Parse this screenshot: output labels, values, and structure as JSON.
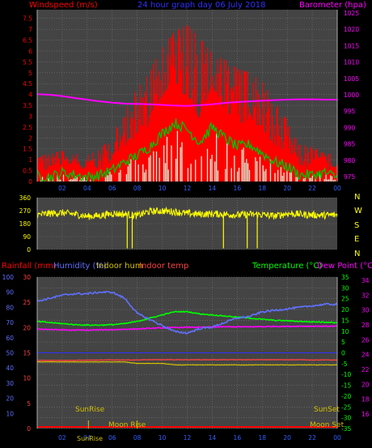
{
  "header": {
    "left": "Windspeed (m/s)",
    "center": "24 hour graph day   06 July 2018",
    "right": "Barometer (hpa)"
  },
  "colors": {
    "wind": "#ff0000",
    "gust": "#ff0000",
    "wind_avg": "#00c000",
    "calm": "#d8f0d8",
    "baro": "#ff00ff",
    "direction": "#ffff00",
    "humidity": "#6070ff",
    "temp": "#00ff00",
    "dew": "#ff00ff",
    "indoor_hum": "#d4c000",
    "indoor_temp": "#ff4040",
    "rain": "#ff0000",
    "sun": "#d4c000",
    "moon": "#d4c000"
  },
  "compass": [
    "N",
    "W",
    "S",
    "E",
    "N"
  ],
  "panel3_header": {
    "rain": "Rainfall (mm)",
    "humidity": "Humidity (%)",
    "indoor_hum": "Indoor hum",
    "indoor_temp": "Indoor temp",
    "temp": "Temperature (°C)",
    "dew": "Dew Point (°C)"
  },
  "markers": {
    "sunrise": "SunRise",
    "sunset": "SunSet",
    "moonrise": "Moon Rise",
    "moonset": "Moon Set",
    "sunrise_axis": "SunRise"
  },
  "chart_data": [
    {
      "type": "bar",
      "name": "wind",
      "x_labels": [
        "02",
        "04",
        "06",
        "08",
        "10",
        "12",
        "14",
        "16",
        "18",
        "20",
        "22",
        "00"
      ],
      "y_ticks": [
        "0",
        "0.5",
        "1",
        "1.5",
        "2",
        "2.5",
        "3",
        "3.5",
        "4",
        "4.5",
        "5",
        "5.5",
        "6",
        "6.5",
        "7",
        "7.5"
      ],
      "ylim": [
        0,
        7.9
      ],
      "y2_ticks": [
        "975",
        "980",
        "985",
        "990",
        "995",
        "1000",
        "1005",
        "1010",
        "1015",
        "1020",
        "1025"
      ],
      "y2lim": [
        973.5,
        1026
      ],
      "gust_envelope": {
        "hours": [
          0,
          1,
          2,
          3,
          4,
          5,
          6,
          7,
          8,
          9,
          10,
          11,
          12,
          13,
          14,
          15,
          16,
          17,
          18,
          19,
          20,
          21,
          22,
          23,
          24
        ],
        "values": [
          1.5,
          1.3,
          1.4,
          1.3,
          1.2,
          1.5,
          2.0,
          3.2,
          4.3,
          5.0,
          6.3,
          6.9,
          7.2,
          6.6,
          5.9,
          5.6,
          5.2,
          5.0,
          4.6,
          3.7,
          2.8,
          1.7,
          1.6,
          1.3,
          1.2
        ]
      },
      "avg_wind": {
        "hours": [
          0,
          1,
          2,
          3,
          4,
          5,
          6,
          7,
          8,
          9,
          10,
          11,
          12,
          13,
          14,
          15,
          16,
          17,
          18,
          19,
          20,
          21,
          22,
          23,
          24
        ],
        "values": [
          0.3,
          0.2,
          0.4,
          0.3,
          0.2,
          0.3,
          0.5,
          0.9,
          1.2,
          1.6,
          2.2,
          2.7,
          2.4,
          1.8,
          2.5,
          2.0,
          1.6,
          1.7,
          1.3,
          0.9,
          0.7,
          0.3,
          0.3,
          0.4,
          0.2
        ]
      },
      "barometer": {
        "hours": [
          0,
          1,
          2,
          3,
          4,
          5,
          6,
          7,
          8,
          9,
          10,
          11,
          12,
          13,
          14,
          15,
          16,
          17,
          18,
          19,
          20,
          21,
          22,
          23,
          24
        ],
        "values": [
          1000.2,
          1000.0,
          999.6,
          999.0,
          998.5,
          998.0,
          997.6,
          997.3,
          997.2,
          997.1,
          996.9,
          996.7,
          996.6,
          996.8,
          997.1,
          997.5,
          997.8,
          998.0,
          998.2,
          998.4,
          998.5,
          998.6,
          998.6,
          998.5,
          998.5
        ]
      }
    },
    {
      "type": "line",
      "name": "wind direction",
      "y_ticks": [
        "0",
        "90",
        "180",
        "270",
        "360"
      ],
      "ylim": [
        0,
        360
      ],
      "series": [
        {
          "hours": [
            0,
            1,
            2,
            3,
            4,
            5,
            6,
            7,
            8,
            9,
            10,
            11,
            12,
            13,
            14,
            15,
            16,
            17,
            18,
            19,
            20,
            21,
            22,
            23,
            24
          ],
          "values": [
            240,
            250,
            255,
            245,
            230,
            235,
            250,
            245,
            235,
            265,
            268,
            262,
            250,
            245,
            248,
            245,
            240,
            245,
            242,
            232,
            250,
            245,
            240,
            238,
            240
          ]
        }
      ],
      "dips_hours": [
        7.2,
        7.6,
        14.9,
        16.8,
        17.6
      ]
    },
    {
      "type": "line",
      "name": "climate",
      "x_labels": [
        "02",
        "04",
        "06",
        "08",
        "10",
        "12",
        "14",
        "16",
        "18",
        "20",
        "22",
        "00"
      ],
      "rain_ticks": [
        "0",
        "5",
        "10",
        "15",
        "20",
        "25",
        "30"
      ],
      "hum_ticks": [
        "10",
        "20",
        "30",
        "40",
        "50",
        "60",
        "70",
        "80",
        "90",
        "100"
      ],
      "hum_lim": [
        0,
        100
      ],
      "temp_ticks": [
        "-35",
        "-30",
        "-25",
        "-20",
        "-15",
        "-10",
        "-5",
        "0",
        "5",
        "10",
        "15",
        "20",
        "25",
        "30",
        "35"
      ],
      "temp_lim": [
        -35,
        35
      ],
      "dew_ticks": [
        "16",
        "18",
        "20",
        "22",
        "24",
        "26",
        "28",
        "30",
        "32",
        "34"
      ],
      "humidity": {
        "hours": [
          0,
          1,
          2,
          3,
          4,
          5,
          6,
          7,
          8,
          9,
          10,
          11,
          12,
          13,
          14,
          15,
          16,
          17,
          18,
          19,
          20,
          21,
          22,
          23,
          24
        ],
        "values": [
          84,
          86,
          88,
          89,
          89,
          90,
          90,
          86,
          76,
          72,
          68,
          64,
          63,
          66,
          67,
          70,
          73,
          74,
          77,
          78,
          79,
          80,
          81,
          82,
          82
        ]
      },
      "temperature": {
        "hours": [
          0,
          1,
          2,
          3,
          4,
          5,
          6,
          7,
          8,
          9,
          10,
          11,
          12,
          13,
          14,
          15,
          16,
          17,
          18,
          19,
          20,
          21,
          22,
          23,
          24
        ],
        "values": [
          14.5,
          14,
          13.5,
          13,
          12.8,
          12.8,
          13,
          13.5,
          14.5,
          16,
          17.5,
          19,
          19,
          18,
          17.5,
          17,
          16.5,
          16,
          15.5,
          15,
          14.8,
          14.5,
          14.3,
          14.2,
          14
        ]
      },
      "dew_point": {
        "hours": [
          0,
          1,
          2,
          3,
          4,
          5,
          6,
          7,
          8,
          9,
          10,
          11,
          12,
          13,
          14,
          15,
          16,
          17,
          18,
          19,
          20,
          21,
          22,
          23,
          24
        ],
        "values": [
          11,
          10.8,
          10.6,
          10.5,
          10.5,
          10.6,
          10.7,
          10.9,
          11,
          11.3,
          11.5,
          11.7,
          11.8,
          11.8,
          11.9,
          12,
          12,
          12,
          12.1,
          12.2,
          12.2,
          12.3,
          12.3,
          12.3,
          12.3
        ]
      },
      "indoor_humidity": {
        "hours": [
          0,
          1,
          2,
          3,
          4,
          5,
          6,
          7,
          8,
          9,
          10,
          11,
          12,
          13,
          14,
          15,
          16,
          17,
          18,
          19,
          20,
          21,
          22,
          23,
          24
        ],
        "values": [
          44,
          44,
          44,
          44,
          44,
          44,
          44,
          44,
          43,
          43,
          43,
          42,
          42,
          42,
          42,
          42,
          42,
          42,
          42,
          42,
          42,
          42,
          42,
          42,
          42
        ]
      },
      "indoor_temp": {
        "hours": [
          0,
          1,
          2,
          3,
          4,
          5,
          6,
          7,
          8,
          9,
          10,
          11,
          12,
          13,
          14,
          15,
          16,
          17,
          18,
          19,
          20,
          21,
          22,
          23,
          24
        ],
        "values": [
          -3.5,
          -3.5,
          -3.5,
          -3.5,
          -3.4,
          -3.4,
          -3.3,
          -3.3,
          -3.3,
          -3.2,
          -3.2,
          -3.2,
          -3.2,
          -3.2,
          -3.2,
          -3.2,
          -3.2,
          -3.2,
          -3.2,
          -3.2,
          -3.2,
          -3.2,
          -3.3,
          -3.3,
          -3.3
        ]
      },
      "rain": {
        "hours": [
          0,
          24
        ],
        "values": [
          0,
          0
        ]
      },
      "sunrise_hour": 4.1,
      "sunset_hour": 22.2,
      "moonrise_hour": 8.0,
      "moonset_hour": 22.5
    }
  ]
}
